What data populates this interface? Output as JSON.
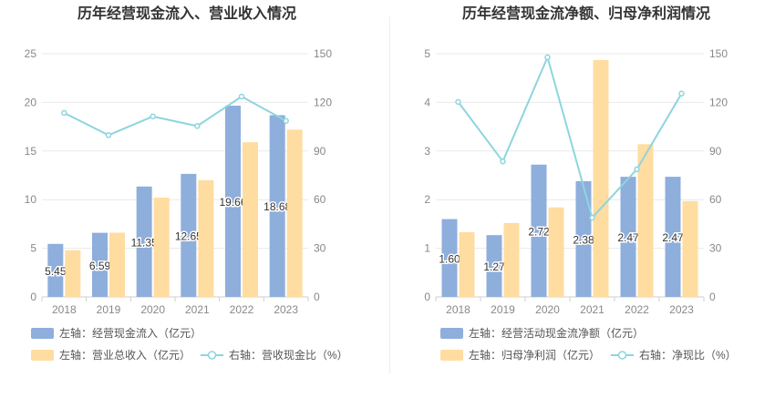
{
  "chart_data": [
    {
      "type": "bar",
      "title": "历年经营现金流入、营业收入情况",
      "categories": [
        "2018",
        "2019",
        "2020",
        "2021",
        "2022",
        "2023"
      ],
      "series": [
        {
          "name": "左轴：经营现金流入（亿元）",
          "type": "bar",
          "axis": "left",
          "color": "#8eaedc",
          "values": [
            5.45,
            6.59,
            11.35,
            12.65,
            19.66,
            18.68
          ],
          "labels": [
            "5.45",
            "6.59",
            "11.35",
            "12.65",
            "19.66",
            "18.68"
          ]
        },
        {
          "name": "左轴：营业总收入（亿元）",
          "type": "bar",
          "axis": "left",
          "color": "#ffdca0",
          "values": [
            4.8,
            6.6,
            10.2,
            12.0,
            15.9,
            17.2
          ]
        },
        {
          "name": "右轴：营收现金比（%）",
          "type": "line",
          "axis": "right",
          "color": "#8dd5df",
          "values": [
            113.5,
            99.8,
            111.3,
            105.4,
            123.6,
            108.6
          ]
        }
      ],
      "y_left": {
        "min": 0,
        "max": 25,
        "ticks": [
          "0",
          "5",
          "10",
          "15",
          "20",
          "25"
        ]
      },
      "y_right": {
        "min": 0,
        "max": 150,
        "ticks": [
          "0",
          "30",
          "60",
          "90",
          "120",
          "150"
        ]
      }
    },
    {
      "type": "bar",
      "title": "历年经营现金流净额、归母净利润情况",
      "categories": [
        "2018",
        "2019",
        "2020",
        "2021",
        "2022",
        "2023"
      ],
      "series": [
        {
          "name": "左轴：经营活动现金流净额（亿元）",
          "type": "bar",
          "axis": "left",
          "color": "#8eaedc",
          "values": [
            1.6,
            1.27,
            2.72,
            2.38,
            2.47,
            2.47
          ],
          "labels": [
            "1.60",
            "1.27",
            "2.72",
            "2.38",
            "2.47",
            "2.47"
          ]
        },
        {
          "name": "左轴：归母净利润（亿元）",
          "type": "bar",
          "axis": "left",
          "color": "#ffdca0",
          "values": [
            1.33,
            1.52,
            1.84,
            4.87,
            3.14,
            1.97
          ]
        },
        {
          "name": "右轴：净现比（%）",
          "type": "line",
          "axis": "right",
          "color": "#8dd5df",
          "values": [
            120.3,
            83.6,
            147.8,
            48.9,
            78.7,
            125.4
          ]
        }
      ],
      "y_left": {
        "min": 0,
        "max": 5,
        "ticks": [
          "0",
          "1",
          "2",
          "3",
          "4",
          "5"
        ]
      },
      "y_right": {
        "min": 0,
        "max": 150,
        "ticks": [
          "0",
          "30",
          "60",
          "90",
          "120",
          "150"
        ]
      }
    }
  ]
}
